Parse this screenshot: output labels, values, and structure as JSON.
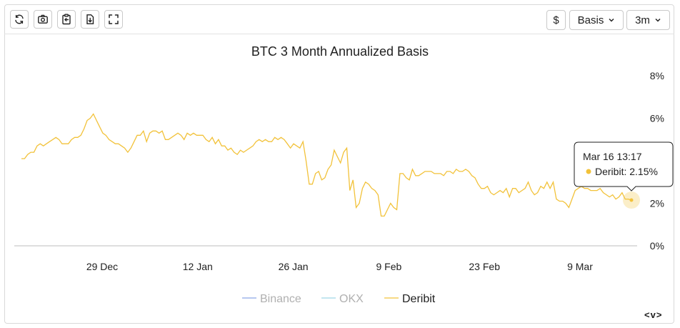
{
  "toolbar": {
    "buttons": [
      {
        "icon": "refresh-icon"
      },
      {
        "icon": "camera-icon"
      },
      {
        "icon": "clipboard-icon"
      },
      {
        "icon": "download-icon"
      },
      {
        "icon": "fullscreen-icon"
      }
    ],
    "currency_label": "$",
    "metric_label": "Basis",
    "range_label": "3m"
  },
  "tooltip": {
    "time": "Mar 16 13:17",
    "series": "Deribit",
    "value": "2.15%"
  },
  "nav_label": "<v>",
  "colors": {
    "deribit": "#f2c23a",
    "binance": "#8aa6e8",
    "okx": "#9fd8e8",
    "axis": "#bdbdbd"
  },
  "chart_data": {
    "type": "line",
    "title": "BTC 3 Month Annualized Basis",
    "x_tick_labels": [
      "29 Dec",
      "12 Jan",
      "26 Jan",
      "9 Feb",
      "23 Feb",
      "9 Mar"
    ],
    "y_tick_labels": [
      "0%",
      "2%",
      "4%",
      "6%",
      "8%"
    ],
    "ylim": [
      0,
      8
    ],
    "legend": [
      {
        "name": "Binance",
        "active": false
      },
      {
        "name": "OKX",
        "active": false
      },
      {
        "name": "Deribit",
        "active": true
      }
    ],
    "legend_position": "bottom",
    "series": [
      {
        "name": "Deribit",
        "values": [
          4.1,
          4.1,
          4.3,
          4.4,
          4.4,
          4.7,
          4.8,
          4.7,
          4.8,
          4.9,
          5.0,
          5.1,
          5.0,
          4.8,
          4.8,
          4.8,
          5.0,
          5.1,
          5.1,
          5.2,
          5.5,
          5.9,
          6.0,
          6.2,
          5.9,
          5.6,
          5.3,
          5.2,
          5.0,
          4.9,
          4.8,
          4.8,
          4.7,
          4.6,
          4.4,
          4.6,
          4.9,
          5.2,
          5.2,
          5.4,
          4.9,
          5.3,
          5.4,
          5.4,
          5.3,
          5.4,
          5.0,
          5.0,
          5.1,
          5.2,
          5.3,
          5.2,
          5.0,
          5.3,
          5.2,
          5.3,
          5.2,
          5.2,
          5.2,
          5.0,
          4.9,
          5.1,
          4.8,
          5.0,
          4.7,
          4.7,
          4.5,
          4.6,
          4.4,
          4.3,
          4.5,
          4.4,
          4.5,
          4.6,
          4.7,
          4.9,
          5.0,
          4.9,
          5.0,
          4.9,
          4.9,
          5.1,
          5.0,
          5.1,
          5.0,
          4.8,
          4.6,
          4.8,
          4.7,
          4.6,
          4.9,
          4.0,
          2.9,
          2.9,
          3.4,
          3.5,
          3.1,
          3.2,
          3.6,
          3.8,
          4.5,
          4.2,
          3.9,
          4.4,
          4.6,
          2.6,
          3.1,
          1.8,
          2.0,
          2.7,
          3.0,
          2.9,
          2.7,
          2.6,
          2.4,
          1.4,
          1.4,
          1.7,
          2.0,
          1.8,
          1.7,
          3.4,
          3.4,
          3.2,
          3.1,
          3.6,
          3.3,
          3.3,
          3.4,
          3.5,
          3.5,
          3.5,
          3.4,
          3.4,
          3.4,
          3.3,
          3.5,
          3.5,
          3.4,
          3.6,
          3.5,
          3.5,
          3.6,
          3.5,
          3.3,
          3.2,
          2.9,
          2.7,
          2.7,
          2.8,
          2.5,
          2.4,
          2.5,
          2.6,
          2.5,
          2.7,
          2.3,
          2.7,
          2.7,
          2.5,
          2.6,
          2.7,
          3.0,
          2.6,
          2.4,
          2.5,
          2.8,
          2.7,
          3.0,
          2.7,
          3.0,
          2.2,
          2.1,
          2.1,
          2.0,
          1.8,
          2.2,
          2.6,
          2.7,
          2.8,
          2.7,
          2.7,
          2.6,
          2.6,
          2.6,
          2.7,
          2.5,
          2.4,
          2.3,
          2.4,
          2.2,
          2.3,
          2.5,
          2.2,
          2.2,
          2.15
        ]
      }
    ]
  }
}
